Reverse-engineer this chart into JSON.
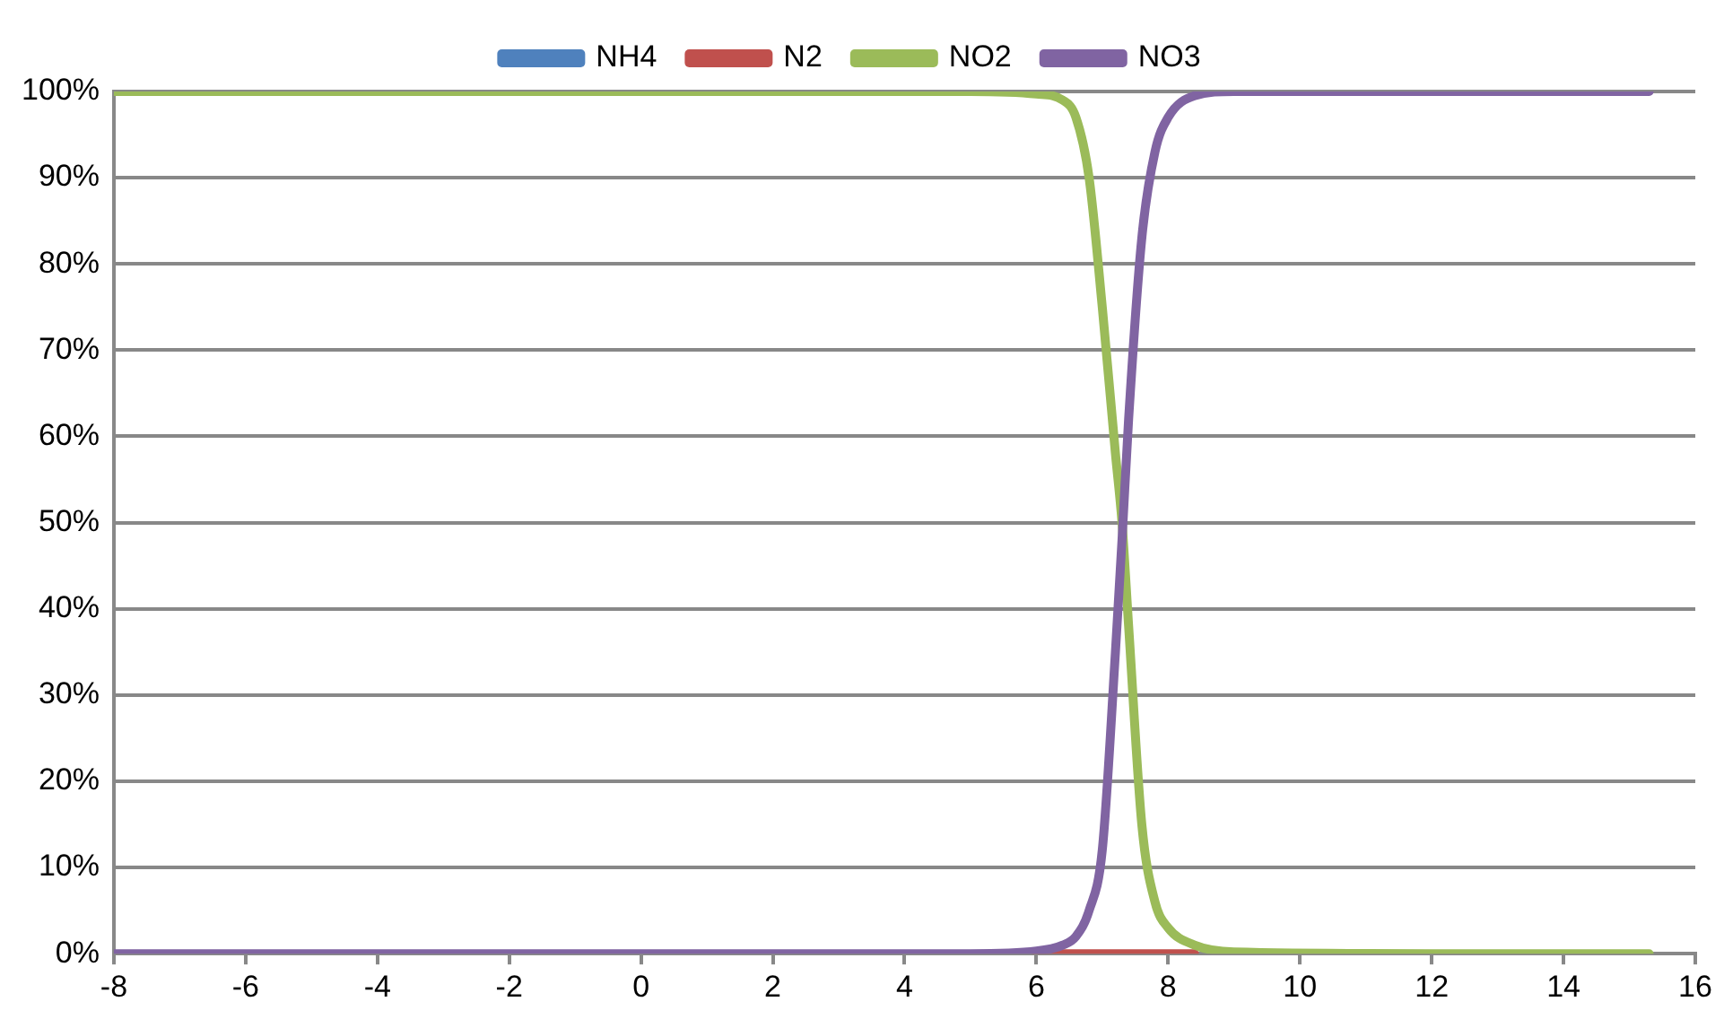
{
  "chart_data": {
    "type": "line",
    "x": [
      -8,
      0,
      5,
      6,
      6.4,
      6.6,
      6.8,
      7.0,
      7.2,
      7.3,
      7.4,
      7.6,
      7.8,
      8.0,
      8.4,
      9,
      12,
      15.3
    ],
    "series": [
      {
        "name": "NH4",
        "color": "#4f81bd",
        "values": [
          null,
          null,
          null,
          null,
          null,
          null,
          null,
          null,
          null,
          null,
          null,
          null,
          null,
          null,
          null,
          null,
          null,
          null
        ]
      },
      {
        "name": "N2",
        "color": "#c0504d",
        "values": [
          null,
          null,
          null,
          0,
          0,
          0,
          0,
          0,
          0,
          0,
          0,
          0,
          0,
          0,
          0,
          null,
          null,
          null
        ]
      },
      {
        "name": "NO2",
        "color": "#9bbb59",
        "values": [
          100,
          100,
          100,
          99.7,
          99,
          97,
          90,
          75,
          58,
          50,
          38,
          15,
          6,
          3,
          1,
          0.2,
          0,
          0
        ]
      },
      {
        "name": "NO3",
        "color": "#8064a2",
        "values": [
          0,
          0,
          0,
          0.3,
          1,
          2,
          5,
          12,
          35,
          48,
          62,
          83,
          93,
          97,
          99.5,
          100,
          100,
          100
        ]
      }
    ],
    "xlim": [
      -8,
      16
    ],
    "xticks": [
      -8,
      -6,
      -4,
      -2,
      0,
      2,
      4,
      6,
      8,
      10,
      12,
      14,
      16
    ],
    "ylim": [
      0,
      100
    ],
    "yticks": [
      {
        "value": 0,
        "label": "0%"
      },
      {
        "value": 10,
        "label": "10%"
      },
      {
        "value": 20,
        "label": "20%"
      },
      {
        "value": 30,
        "label": "30%"
      },
      {
        "value": 40,
        "label": "40%"
      },
      {
        "value": 50,
        "label": "50%"
      },
      {
        "value": 60,
        "label": "60%"
      },
      {
        "value": 70,
        "label": "70%"
      },
      {
        "value": 80,
        "label": "80%"
      },
      {
        "value": 90,
        "label": "90%"
      },
      {
        "value": 100,
        "label": "100%"
      }
    ],
    "grid": "y",
    "legend": "top",
    "marker": "none",
    "line_style": "solid"
  }
}
